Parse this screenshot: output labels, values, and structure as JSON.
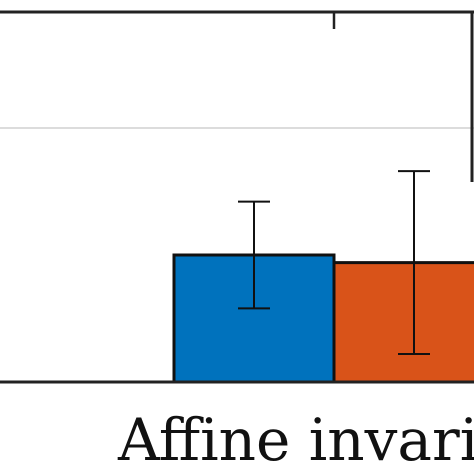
{
  "chart_data": {
    "type": "bar",
    "title": "",
    "xlabel": "",
    "ylabel": "",
    "categories": [
      "Affine invaria"
    ],
    "series": [
      {
        "color": "#0072BD",
        "values": [
          0.5
        ],
        "error_low": [
          0.29
        ],
        "error_high": [
          0.71
        ]
      },
      {
        "color": "#D95319",
        "values": [
          0.47
        ],
        "error_low": [
          0.11
        ],
        "error_high": [
          0.83
        ]
      }
    ],
    "ylim": [
      0,
      1.2
    ],
    "grid": true,
    "gridlines": [
      1.0
    ]
  }
}
